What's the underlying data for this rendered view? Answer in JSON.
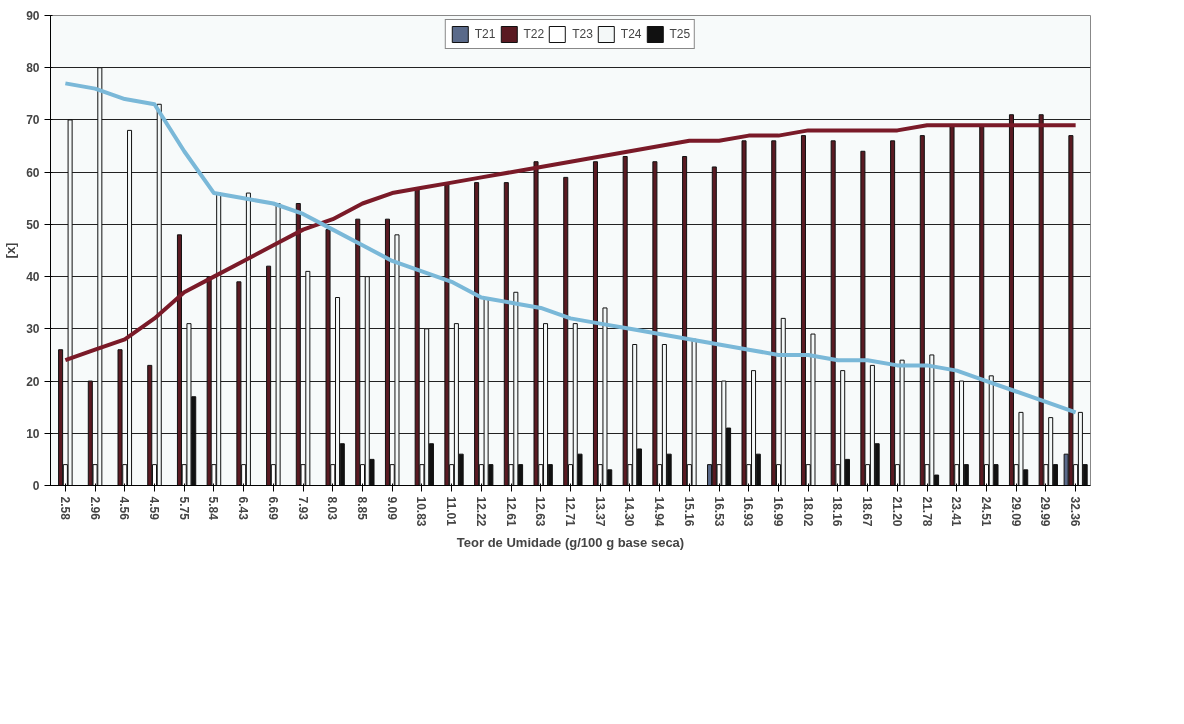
{
  "chart_data": {
    "type": "bar",
    "xlabel": "Teor de Umidade (g/100 g base seca)",
    "ylabel": "[x]",
    "categories": [
      "2.58",
      "2.96",
      "4.56",
      "4.59",
      "5.75",
      "5.84",
      "6.43",
      "6.69",
      "7.93",
      "8.03",
      "8.85",
      "9.09",
      "10.83",
      "11.01",
      "12.22",
      "12.61",
      "12.63",
      "12.71",
      "13.37",
      "14.30",
      "14.94",
      "15.16",
      "16.53",
      "16.93",
      "16.99",
      "18.02",
      "18.16",
      "18.67",
      "21.20",
      "21.78",
      "23.41",
      "24.51",
      "29.09",
      "29.99",
      "32.36"
    ],
    "ylim": [
      0,
      90
    ],
    "yticks": [
      0,
      10,
      20,
      30,
      40,
      50,
      60,
      70,
      80,
      90
    ],
    "grid": "y",
    "legend": "top",
    "series": [
      {
        "name": "T21",
        "color": "#5a6a8a",
        "values": [
          null,
          null,
          null,
          null,
          null,
          null,
          null,
          null,
          null,
          null,
          null,
          null,
          null,
          null,
          null,
          null,
          null,
          null,
          null,
          null,
          null,
          null,
          4,
          null,
          null,
          null,
          null,
          null,
          null,
          null,
          null,
          null,
          null,
          null,
          6
        ]
      },
      {
        "name": "T22",
        "color": "#5a1a22",
        "values": [
          26,
          20,
          26,
          23,
          48,
          40,
          39,
          42,
          54,
          49,
          51,
          51,
          57,
          58,
          58,
          58,
          62,
          59,
          62,
          63,
          62,
          63,
          61,
          66,
          66,
          67,
          66,
          64,
          66,
          67,
          69,
          69,
          71,
          71,
          67
        ]
      },
      {
        "name": "T23",
        "color": "#ffffff",
        "values": [
          4,
          4,
          4,
          4,
          4,
          4,
          4,
          4,
          4,
          4,
          4,
          4,
          4,
          4,
          4,
          4,
          4,
          4,
          4,
          4,
          4,
          4,
          4,
          4,
          4,
          4,
          4,
          4,
          4,
          4,
          4,
          4,
          4,
          4,
          4
        ]
      },
      {
        "name": "T24",
        "color": "#f4f8f8",
        "values": [
          70,
          80,
          68,
          73,
          31,
          56,
          56,
          54,
          41,
          36,
          40,
          48,
          30,
          31,
          36,
          37,
          31,
          31,
          34,
          27,
          27,
          28,
          20,
          22,
          32,
          29,
          22,
          23,
          24,
          25,
          20,
          21,
          14,
          13,
          14
        ]
      },
      {
        "name": "T25",
        "color": "#111111",
        "values": [
          null,
          null,
          null,
          null,
          17,
          null,
          null,
          null,
          null,
          8,
          5,
          null,
          8,
          6,
          4,
          4,
          4,
          6,
          3,
          7,
          6,
          null,
          11,
          6,
          null,
          null,
          5,
          8,
          null,
          2,
          4,
          4,
          3,
          4,
          4
        ]
      },
      {
        "type": "line",
        "color": "#7a1a28",
        "values": [
          24,
          26,
          28,
          32,
          37,
          40,
          43,
          46,
          49,
          51,
          54,
          56,
          57,
          58,
          59,
          60,
          61,
          62,
          63,
          64,
          65,
          66,
          66,
          67,
          67,
          68,
          68,
          68,
          68,
          69,
          69,
          69,
          69,
          69,
          69
        ]
      },
      {
        "type": "line",
        "color": "#7ab8d8",
        "values": [
          77,
          76,
          74,
          73,
          64,
          56,
          55,
          54,
          52,
          49,
          46,
          43,
          41,
          39,
          36,
          35,
          34,
          32,
          31,
          30,
          29,
          28,
          27,
          26,
          25,
          25,
          24,
          24,
          23,
          23,
          22,
          20,
          18,
          16,
          14
        ]
      }
    ]
  }
}
